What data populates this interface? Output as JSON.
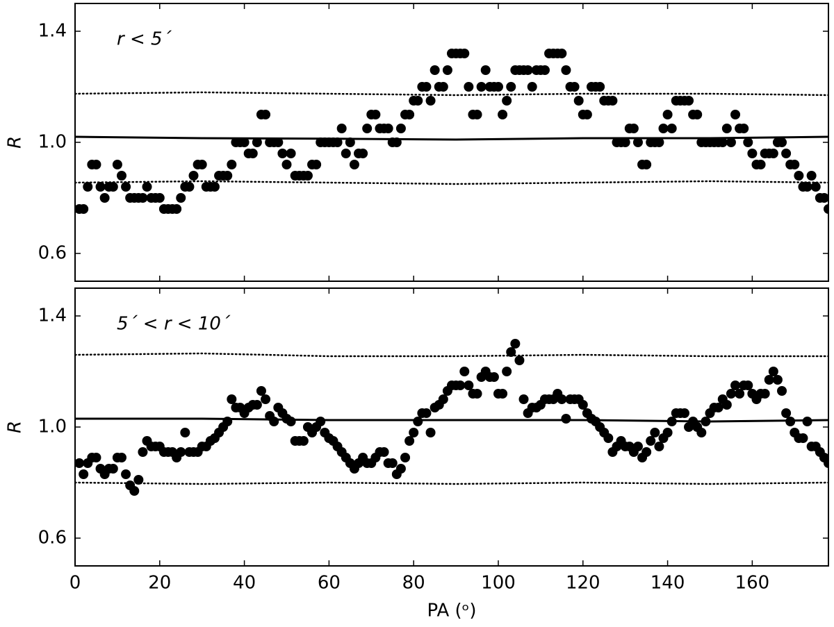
{
  "chart_data": [
    {
      "type": "scatter",
      "annotation": "r < 5´",
      "ylabel": "R",
      "xlim": [
        0,
        178
      ],
      "xticks": [
        0,
        20,
        40,
        60,
        80,
        100,
        120,
        140,
        160
      ],
      "ylim": [
        0.5,
        1.5
      ],
      "yticks": [
        0.6,
        {
          "value": 1.0,
          "label": "1.0"
        },
        1.4
      ],
      "series": [
        {
          "style": "markers",
          "color": "#000000",
          "x": [
            1,
            2,
            3,
            4,
            5,
            6,
            7,
            8,
            9,
            10,
            11,
            12,
            13,
            14,
            15,
            16,
            17,
            18,
            19,
            20,
            21,
            22,
            23,
            24,
            25,
            26,
            27,
            28,
            29,
            30,
            31,
            32,
            33,
            34,
            35,
            36,
            37,
            38,
            39,
            40,
            41,
            42,
            43,
            44,
            45,
            46,
            47,
            48,
            49,
            50,
            51,
            52,
            53,
            54,
            55,
            56,
            57,
            58,
            59,
            60,
            61,
            62,
            63,
            64,
            65,
            66,
            67,
            68,
            69,
            70,
            71,
            72,
            73,
            74,
            75,
            76,
            77,
            78,
            79,
            80,
            81,
            82,
            83,
            84,
            85,
            86,
            87,
            88,
            89,
            90,
            91,
            92,
            93,
            94,
            95,
            96,
            97,
            98,
            99,
            100,
            101,
            102,
            103,
            104,
            105,
            106,
            107,
            108,
            109,
            110,
            111,
            112,
            113,
            114,
            115,
            116,
            117,
            118,
            119,
            120,
            121,
            122,
            123,
            124,
            125,
            126,
            127,
            128,
            129,
            130,
            131,
            132,
            133,
            134,
            135,
            136,
            137,
            138,
            139,
            140,
            141,
            142,
            143,
            144,
            145,
            146,
            147,
            148,
            149,
            150,
            151,
            152,
            153,
            154,
            155,
            156,
            157,
            158,
            159,
            160,
            161,
            162,
            163,
            164,
            165,
            166,
            167,
            168,
            169,
            170,
            171,
            172,
            173,
            174,
            175,
            176,
            177,
            178
          ],
          "values": [
            0.76,
            0.76,
            0.84,
            0.92,
            0.92,
            0.84,
            0.8,
            0.84,
            0.84,
            0.92,
            0.88,
            0.84,
            0.8,
            0.8,
            0.8,
            0.8,
            0.84,
            0.8,
            0.8,
            0.8,
            0.76,
            0.76,
            0.76,
            0.76,
            0.8,
            0.84,
            0.84,
            0.88,
            0.92,
            0.92,
            0.84,
            0.84,
            0.84,
            0.88,
            0.88,
            0.88,
            0.92,
            1.0,
            1.0,
            1.0,
            0.96,
            0.96,
            1.0,
            1.1,
            1.1,
            1.0,
            1.0,
            1.0,
            0.96,
            0.92,
            0.96,
            0.88,
            0.88,
            0.88,
            0.88,
            0.92,
            0.92,
            1.0,
            1.0,
            1.0,
            1.0,
            1.0,
            1.05,
            0.96,
            1.0,
            0.92,
            0.96,
            0.96,
            1.05,
            1.1,
            1.1,
            1.05,
            1.05,
            1.05,
            1.0,
            1.0,
            1.05,
            1.1,
            1.1,
            1.15,
            1.15,
            1.2,
            1.2,
            1.15,
            1.26,
            1.2,
            1.2,
            1.26,
            1.32,
            1.32,
            1.32,
            1.32,
            1.2,
            1.1,
            1.1,
            1.2,
            1.26,
            1.2,
            1.2,
            1.2,
            1.1,
            1.15,
            1.2,
            1.26,
            1.26,
            1.26,
            1.26,
            1.2,
            1.26,
            1.26,
            1.26,
            1.32,
            1.32,
            1.32,
            1.32,
            1.26,
            1.2,
            1.2,
            1.15,
            1.1,
            1.1,
            1.2,
            1.2,
            1.2,
            1.15,
            1.15,
            1.15,
            1.0,
            1.0,
            1.0,
            1.05,
            1.05,
            1.0,
            0.92,
            0.92,
            1.0,
            1.0,
            1.0,
            1.05,
            1.1,
            1.05,
            1.15,
            1.15,
            1.15,
            1.15,
            1.1,
            1.1,
            1.0,
            1.0,
            1.0,
            1.0,
            1.0,
            1.0,
            1.05,
            1.0,
            1.1,
            1.05,
            1.05,
            1.0,
            0.96,
            0.92,
            0.92,
            0.96,
            0.96,
            0.96,
            1.0,
            1.0,
            0.96,
            0.92,
            0.92,
            0.88,
            0.84,
            0.84,
            0.88,
            0.84,
            0.8,
            0.8,
            0.76
          ]
        },
        {
          "style": "solid",
          "color": "#000000",
          "x": [
            0,
            30,
            60,
            90,
            120,
            150,
            178
          ],
          "values": [
            1.02,
            1.015,
            1.013,
            1.01,
            1.015,
            1.015,
            1.02
          ]
        },
        {
          "style": "dotted",
          "color": "#000000",
          "x": [
            0,
            30,
            60,
            90,
            120,
            150,
            178
          ],
          "values": [
            1.175,
            1.18,
            1.175,
            1.17,
            1.175,
            1.175,
            1.17
          ]
        },
        {
          "style": "dotted",
          "color": "#000000",
          "x": [
            0,
            30,
            60,
            90,
            120,
            150,
            178
          ],
          "values": [
            0.855,
            0.86,
            0.855,
            0.85,
            0.855,
            0.86,
            0.855
          ]
        }
      ]
    },
    {
      "type": "scatter",
      "annotation": "5´ < r < 10´",
      "ylabel": "R",
      "xlabel": "PA (ᵒ)",
      "xlim": [
        0,
        178
      ],
      "xticks": [
        0,
        20,
        40,
        60,
        80,
        100,
        120,
        140,
        160
      ],
      "ylim": [
        0.5,
        1.5
      ],
      "yticks": [
        0.6,
        {
          "value": 1.0,
          "label": "1.0"
        },
        1.4
      ],
      "series": [
        {
          "style": "markers",
          "color": "#000000",
          "x": [
            1,
            2,
            3,
            4,
            5,
            6,
            7,
            8,
            9,
            10,
            11,
            12,
            13,
            14,
            15,
            16,
            17,
            18,
            19,
            20,
            21,
            22,
            23,
            24,
            25,
            26,
            27,
            28,
            29,
            30,
            31,
            32,
            33,
            34,
            35,
            36,
            37,
            38,
            39,
            40,
            41,
            42,
            43,
            44,
            45,
            46,
            47,
            48,
            49,
            50,
            51,
            52,
            53,
            54,
            55,
            56,
            57,
            58,
            59,
            60,
            61,
            62,
            63,
            64,
            65,
            66,
            67,
            68,
            69,
            70,
            71,
            72,
            73,
            74,
            75,
            76,
            77,
            78,
            79,
            80,
            81,
            82,
            83,
            84,
            85,
            86,
            87,
            88,
            89,
            90,
            91,
            92,
            93,
            94,
            95,
            96,
            97,
            98,
            99,
            100,
            101,
            102,
            103,
            104,
            105,
            106,
            107,
            108,
            109,
            110,
            111,
            112,
            113,
            114,
            115,
            116,
            117,
            118,
            119,
            120,
            121,
            122,
            123,
            124,
            125,
            126,
            127,
            128,
            129,
            130,
            131,
            132,
            133,
            134,
            135,
            136,
            137,
            138,
            139,
            140,
            141,
            142,
            143,
            144,
            145,
            146,
            147,
            148,
            149,
            150,
            151,
            152,
            153,
            154,
            155,
            156,
            157,
            158,
            159,
            160,
            161,
            162,
            163,
            164,
            165,
            166,
            167,
            168,
            169,
            170,
            171,
            172,
            173,
            174,
            175,
            176,
            177,
            178
          ],
          "values": [
            0.87,
            0.83,
            0.87,
            0.89,
            0.89,
            0.85,
            0.83,
            0.85,
            0.85,
            0.89,
            0.89,
            0.83,
            0.79,
            0.77,
            0.81,
            0.91,
            0.95,
            0.93,
            0.93,
            0.93,
            0.91,
            0.91,
            0.91,
            0.89,
            0.91,
            0.98,
            0.91,
            0.91,
            0.91,
            0.93,
            0.93,
            0.95,
            0.96,
            0.98,
            1.0,
            1.02,
            1.1,
            1.07,
            1.07,
            1.05,
            1.07,
            1.08,
            1.08,
            1.13,
            1.1,
            1.04,
            1.02,
            1.07,
            1.05,
            1.03,
            1.02,
            0.95,
            0.95,
            0.95,
            1.0,
            0.98,
            1.0,
            1.02,
            0.98,
            0.96,
            0.95,
            0.93,
            0.91,
            0.89,
            0.87,
            0.85,
            0.87,
            0.89,
            0.87,
            0.87,
            0.89,
            0.91,
            0.91,
            0.87,
            0.87,
            0.83,
            0.85,
            0.89,
            0.95,
            0.98,
            1.02,
            1.05,
            1.05,
            0.98,
            1.07,
            1.08,
            1.1,
            1.13,
            1.15,
            1.15,
            1.15,
            1.2,
            1.15,
            1.12,
            1.12,
            1.18,
            1.2,
            1.18,
            1.18,
            1.12,
            1.12,
            1.2,
            1.27,
            1.3,
            1.24,
            1.1,
            1.05,
            1.07,
            1.07,
            1.08,
            1.1,
            1.1,
            1.1,
            1.12,
            1.1,
            1.03,
            1.1,
            1.1,
            1.1,
            1.08,
            1.05,
            1.03,
            1.02,
            1.0,
            0.98,
            0.96,
            0.91,
            0.93,
            0.95,
            0.93,
            0.93,
            0.91,
            0.93,
            0.89,
            0.91,
            0.95,
            0.98,
            0.93,
            0.96,
            0.98,
            1.02,
            1.05,
            1.05,
            1.05,
            1.0,
            1.02,
            1.0,
            0.98,
            1.02,
            1.05,
            1.07,
            1.07,
            1.1,
            1.08,
            1.12,
            1.15,
            1.12,
            1.15,
            1.15,
            1.12,
            1.1,
            1.12,
            1.12,
            1.17,
            1.2,
            1.17,
            1.13,
            1.05,
            1.02,
            0.98,
            0.96,
            0.96,
            1.02,
            0.93,
            0.93,
            0.91,
            0.89,
            0.87
          ]
        },
        {
          "style": "solid",
          "color": "#000000",
          "x": [
            0,
            30,
            60,
            90,
            120,
            150,
            178
          ],
          "values": [
            1.03,
            1.03,
            1.025,
            1.025,
            1.025,
            1.02,
            1.025
          ]
        },
        {
          "style": "dotted",
          "color": "#000000",
          "x": [
            0,
            30,
            60,
            90,
            120,
            150,
            178
          ],
          "values": [
            1.26,
            1.265,
            1.255,
            1.255,
            1.26,
            1.255,
            1.255
          ]
        },
        {
          "style": "dotted",
          "color": "#000000",
          "x": [
            0,
            30,
            60,
            90,
            120,
            150,
            178
          ],
          "values": [
            0.8,
            0.795,
            0.8,
            0.795,
            0.8,
            0.795,
            0.8
          ]
        }
      ]
    }
  ]
}
